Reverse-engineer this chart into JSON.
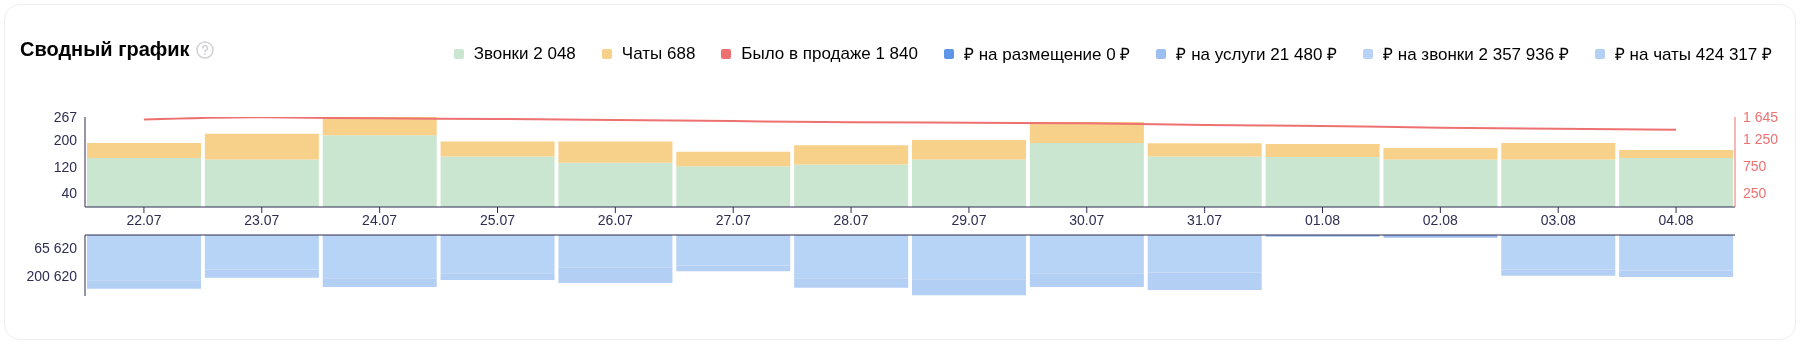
{
  "chart_data": [
    {
      "type": "bar",
      "stacked": true,
      "title": "Сводный график",
      "legend": "top",
      "marker": "none",
      "categories": [
        "22.07",
        "23.07",
        "24.07",
        "25.07",
        "26.07",
        "27.07",
        "28.07",
        "29.07",
        "30.07",
        "31.07",
        "01.08",
        "02.08",
        "03.08",
        "04.08"
      ],
      "ylim": [
        0,
        267
      ],
      "yticks": [
        40,
        120,
        200,
        267
      ],
      "y2lim": [
        0,
        1645
      ],
      "y2ticks": [
        250,
        750,
        {
          "value": 1250,
          "label": "1 250"
        },
        {
          "value": 1645,
          "label": "1 645"
        }
      ],
      "series": [
        {
          "name": "Звонки 2 048",
          "color": "#cbe6d0",
          "values": [
            145,
            141,
            213,
            150,
            131,
            121,
            126,
            141,
            190,
            150,
            148,
            141,
            141,
            145
          ]
        },
        {
          "name": "Чаты 688",
          "color": "#f7d08a",
          "values": [
            45,
            76,
            54,
            44,
            63,
            43,
            57,
            58,
            62,
            39,
            39,
            34,
            49,
            24
          ]
        },
        {
          "name": "Было в продаже 1 840",
          "type": "line",
          "axis": "y2",
          "color": "#ee7171",
          "values": [
            1600,
            1640,
            1620,
            1610,
            1590,
            1570,
            1550,
            1540,
            1530,
            1500,
            1480,
            1450,
            1430,
            1410
          ]
        }
      ]
    },
    {
      "type": "bar",
      "stacked": true,
      "legend": "top right",
      "tick_labels": "y",
      "categories": [
        "22.07",
        "23.07",
        "24.07",
        "25.07",
        "26.07",
        "27.07",
        "28.07",
        "29.07",
        "30.07",
        "31.07",
        "01.08",
        "02.08",
        "03.08",
        "04.08"
      ],
      "ylim": [
        300000,
        0
      ],
      "yticks": [
        {
          "value": 65620,
          "label": "65 620"
        },
        {
          "value": 200620,
          "label": "200 620"
        }
      ],
      "series": [
        {
          "name": "₽ на размещение 0 ₽",
          "color": "#5f95e6",
          "values": [
            0,
            0,
            0,
            0,
            0,
            0,
            0,
            0,
            0,
            0,
            0,
            0,
            0,
            0
          ]
        },
        {
          "name": "₽ на услуги 21 480 ₽",
          "color": "#9dbff0",
          "values": [
            0,
            0,
            0,
            0,
            0,
            0,
            0,
            0,
            0,
            0,
            8000,
            13000,
            0,
            0
          ]
        },
        {
          "name": "₽ на звонки 2 357 936 ₽",
          "color": "#b7d3f5",
          "values": [
            225000,
            170000,
            215000,
            188000,
            161000,
            150000,
            215000,
            218000,
            190000,
            184000,
            0,
            0,
            170000,
            175000
          ]
        },
        {
          "name": "₽ на чаты 424 317 ₽",
          "color": "#b3cff4",
          "values": [
            39000,
            40000,
            41000,
            33000,
            75000,
            28000,
            44000,
            78000,
            66000,
            86000,
            0,
            0,
            31000,
            32000
          ]
        }
      ]
    }
  ]
}
